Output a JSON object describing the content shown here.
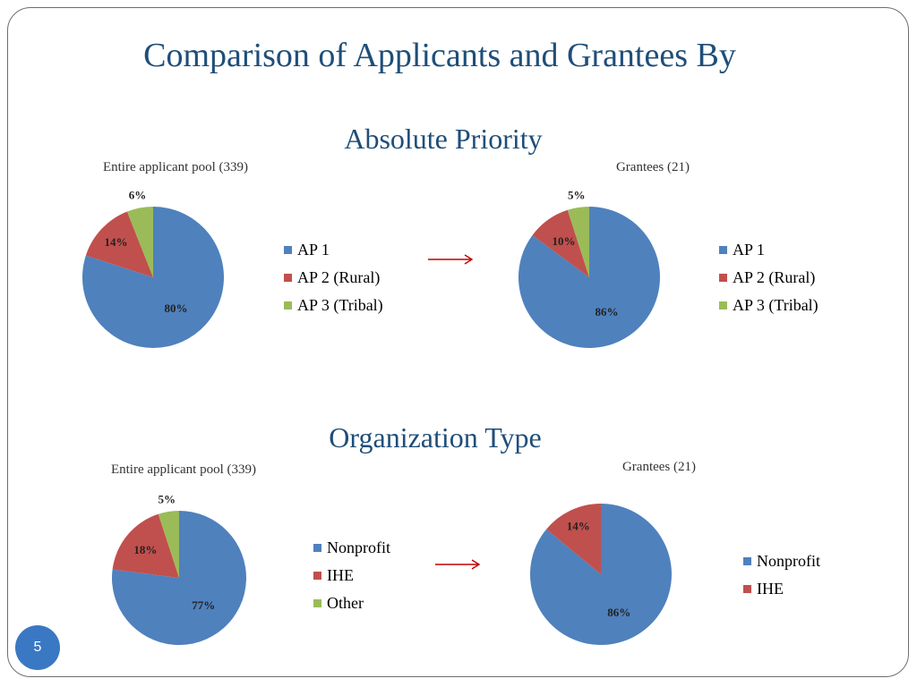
{
  "slide": {
    "title": "Comparison of Applicants and Grantees By",
    "page_number": "5"
  },
  "colors": {
    "blue": "#4f81bd",
    "red": "#c0504d",
    "green": "#9bbb59",
    "arrow": "#c00000"
  },
  "sections": {
    "absolute_priority": "Absolute Priority",
    "organization_type": "Organization Type"
  },
  "chart_data": [
    {
      "type": "pie",
      "title": "Entire applicant pool (339)",
      "labels": [
        "AP 1",
        "AP 2 (Rural)",
        "AP 3 (Tribal)"
      ],
      "values": [
        80,
        14,
        6
      ],
      "data_labels": [
        "80%",
        "14%",
        "6%"
      ],
      "colors": [
        "#4f81bd",
        "#c0504d",
        "#9bbb59"
      ],
      "legend": "right"
    },
    {
      "type": "pie",
      "title": "Grantees (21)",
      "labels": [
        "AP 1",
        "AP 2 (Rural)",
        "AP 3 (Tribal)"
      ],
      "values": [
        86,
        10,
        5
      ],
      "data_labels": [
        "86%",
        "10%",
        "5%"
      ],
      "colors": [
        "#4f81bd",
        "#c0504d",
        "#9bbb59"
      ],
      "legend": "right"
    },
    {
      "type": "pie",
      "title": "Entire applicant pool (339)",
      "labels": [
        "Nonprofit",
        "IHE",
        "Other"
      ],
      "values": [
        77,
        18,
        5
      ],
      "data_labels": [
        "77%",
        "18%",
        "5%"
      ],
      "colors": [
        "#4f81bd",
        "#c0504d",
        "#9bbb59"
      ],
      "legend": "right"
    },
    {
      "type": "pie",
      "title": "Grantees (21)",
      "labels": [
        "Nonprofit",
        "IHE"
      ],
      "values": [
        86,
        14
      ],
      "data_labels": [
        "86%",
        "14%"
      ],
      "colors": [
        "#4f81bd",
        "#c0504d"
      ],
      "legend": "right"
    }
  ]
}
